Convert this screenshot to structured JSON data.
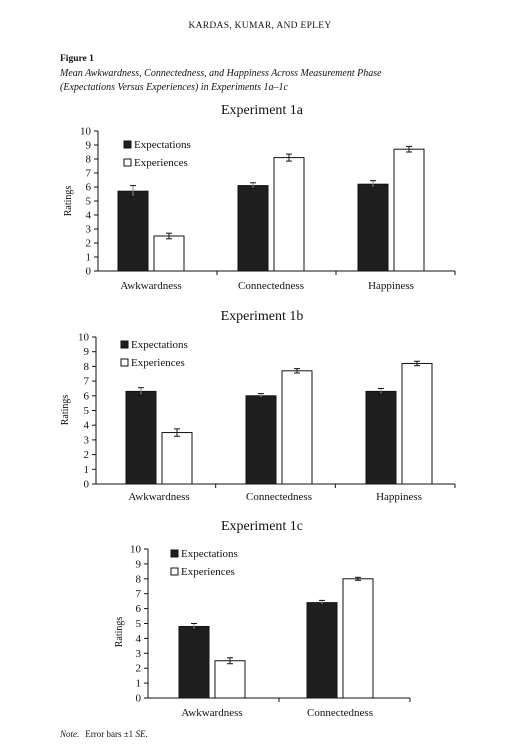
{
  "header": {
    "running_head": "KARDAS, KUMAR, AND EPLEY"
  },
  "figure": {
    "label": "Figure 1",
    "caption_line1": "Mean Awkwardness, Connectedness, and Happiness Across Measurement Phase",
    "caption_line2": "(Expectations Versus Experiences) in Experiments 1a–1c"
  },
  "note": {
    "lead": "Note.",
    "text_before": "Error bars ±1 ",
    "text_italic": "SE",
    "text_after": "."
  },
  "colors": {
    "expectations": "#1f1f1f",
    "experiences": "#ffffff",
    "outline": "#111111"
  },
  "chart_data": [
    {
      "type": "bar",
      "title": "Experiment 1a",
      "ylabel": "Ratings",
      "xlabel": "",
      "ylim": [
        0,
        10
      ],
      "yticks": [
        0,
        1,
        2,
        3,
        4,
        5,
        6,
        7,
        8,
        9,
        10
      ],
      "categories": [
        "Awkwardness",
        "Connectedness",
        "Happiness"
      ],
      "series": [
        {
          "name": "Expectations",
          "values": [
            5.7,
            6.1,
            6.2
          ],
          "se": [
            0.4,
            0.2,
            0.25
          ]
        },
        {
          "name": "Experiences",
          "values": [
            2.5,
            8.1,
            8.7
          ],
          "se": [
            0.2,
            0.25,
            0.2
          ]
        }
      ],
      "legend_position": "top-left",
      "grid": false
    },
    {
      "type": "bar",
      "title": "Experiment 1b",
      "ylabel": "Ratings",
      "xlabel": "",
      "ylim": [
        0,
        10
      ],
      "yticks": [
        0,
        1,
        2,
        3,
        4,
        5,
        6,
        7,
        8,
        9,
        10
      ],
      "categories": [
        "Awkwardness",
        "Connectedness",
        "Happiness"
      ],
      "series": [
        {
          "name": "Expectations",
          "values": [
            6.3,
            6.0,
            6.3
          ],
          "se": [
            0.25,
            0.15,
            0.2
          ]
        },
        {
          "name": "Experiences",
          "values": [
            3.5,
            7.7,
            8.2
          ],
          "se": [
            0.25,
            0.15,
            0.15
          ]
        }
      ],
      "legend_position": "top-left",
      "grid": false
    },
    {
      "type": "bar",
      "title": "Experiment 1c",
      "ylabel": "Ratings",
      "xlabel": "",
      "ylim": [
        0,
        10
      ],
      "yticks": [
        0,
        1,
        2,
        3,
        4,
        5,
        6,
        7,
        8,
        9,
        10
      ],
      "categories": [
        "Awkwardness",
        "Connectedness"
      ],
      "series": [
        {
          "name": "Expectations",
          "values": [
            4.8,
            6.4
          ],
          "se": [
            0.2,
            0.15
          ]
        },
        {
          "name": "Experiences",
          "values": [
            2.5,
            8.0
          ],
          "se": [
            0.2,
            0.1
          ]
        }
      ],
      "legend_position": "top-left",
      "grid": false
    }
  ]
}
